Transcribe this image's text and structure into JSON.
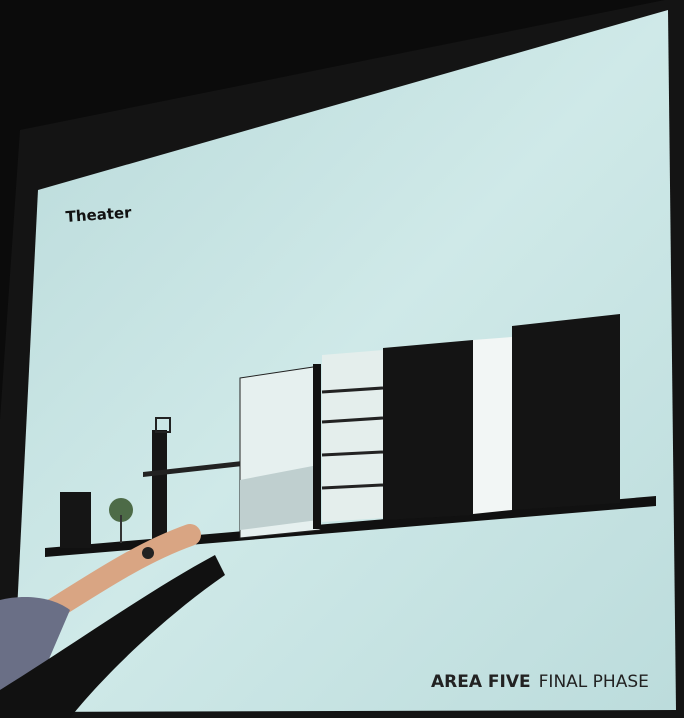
{
  "slide": {
    "title": "Theater",
    "footer": {
      "project": "AREA FIVE",
      "phase": "FINAL PHASE"
    }
  }
}
